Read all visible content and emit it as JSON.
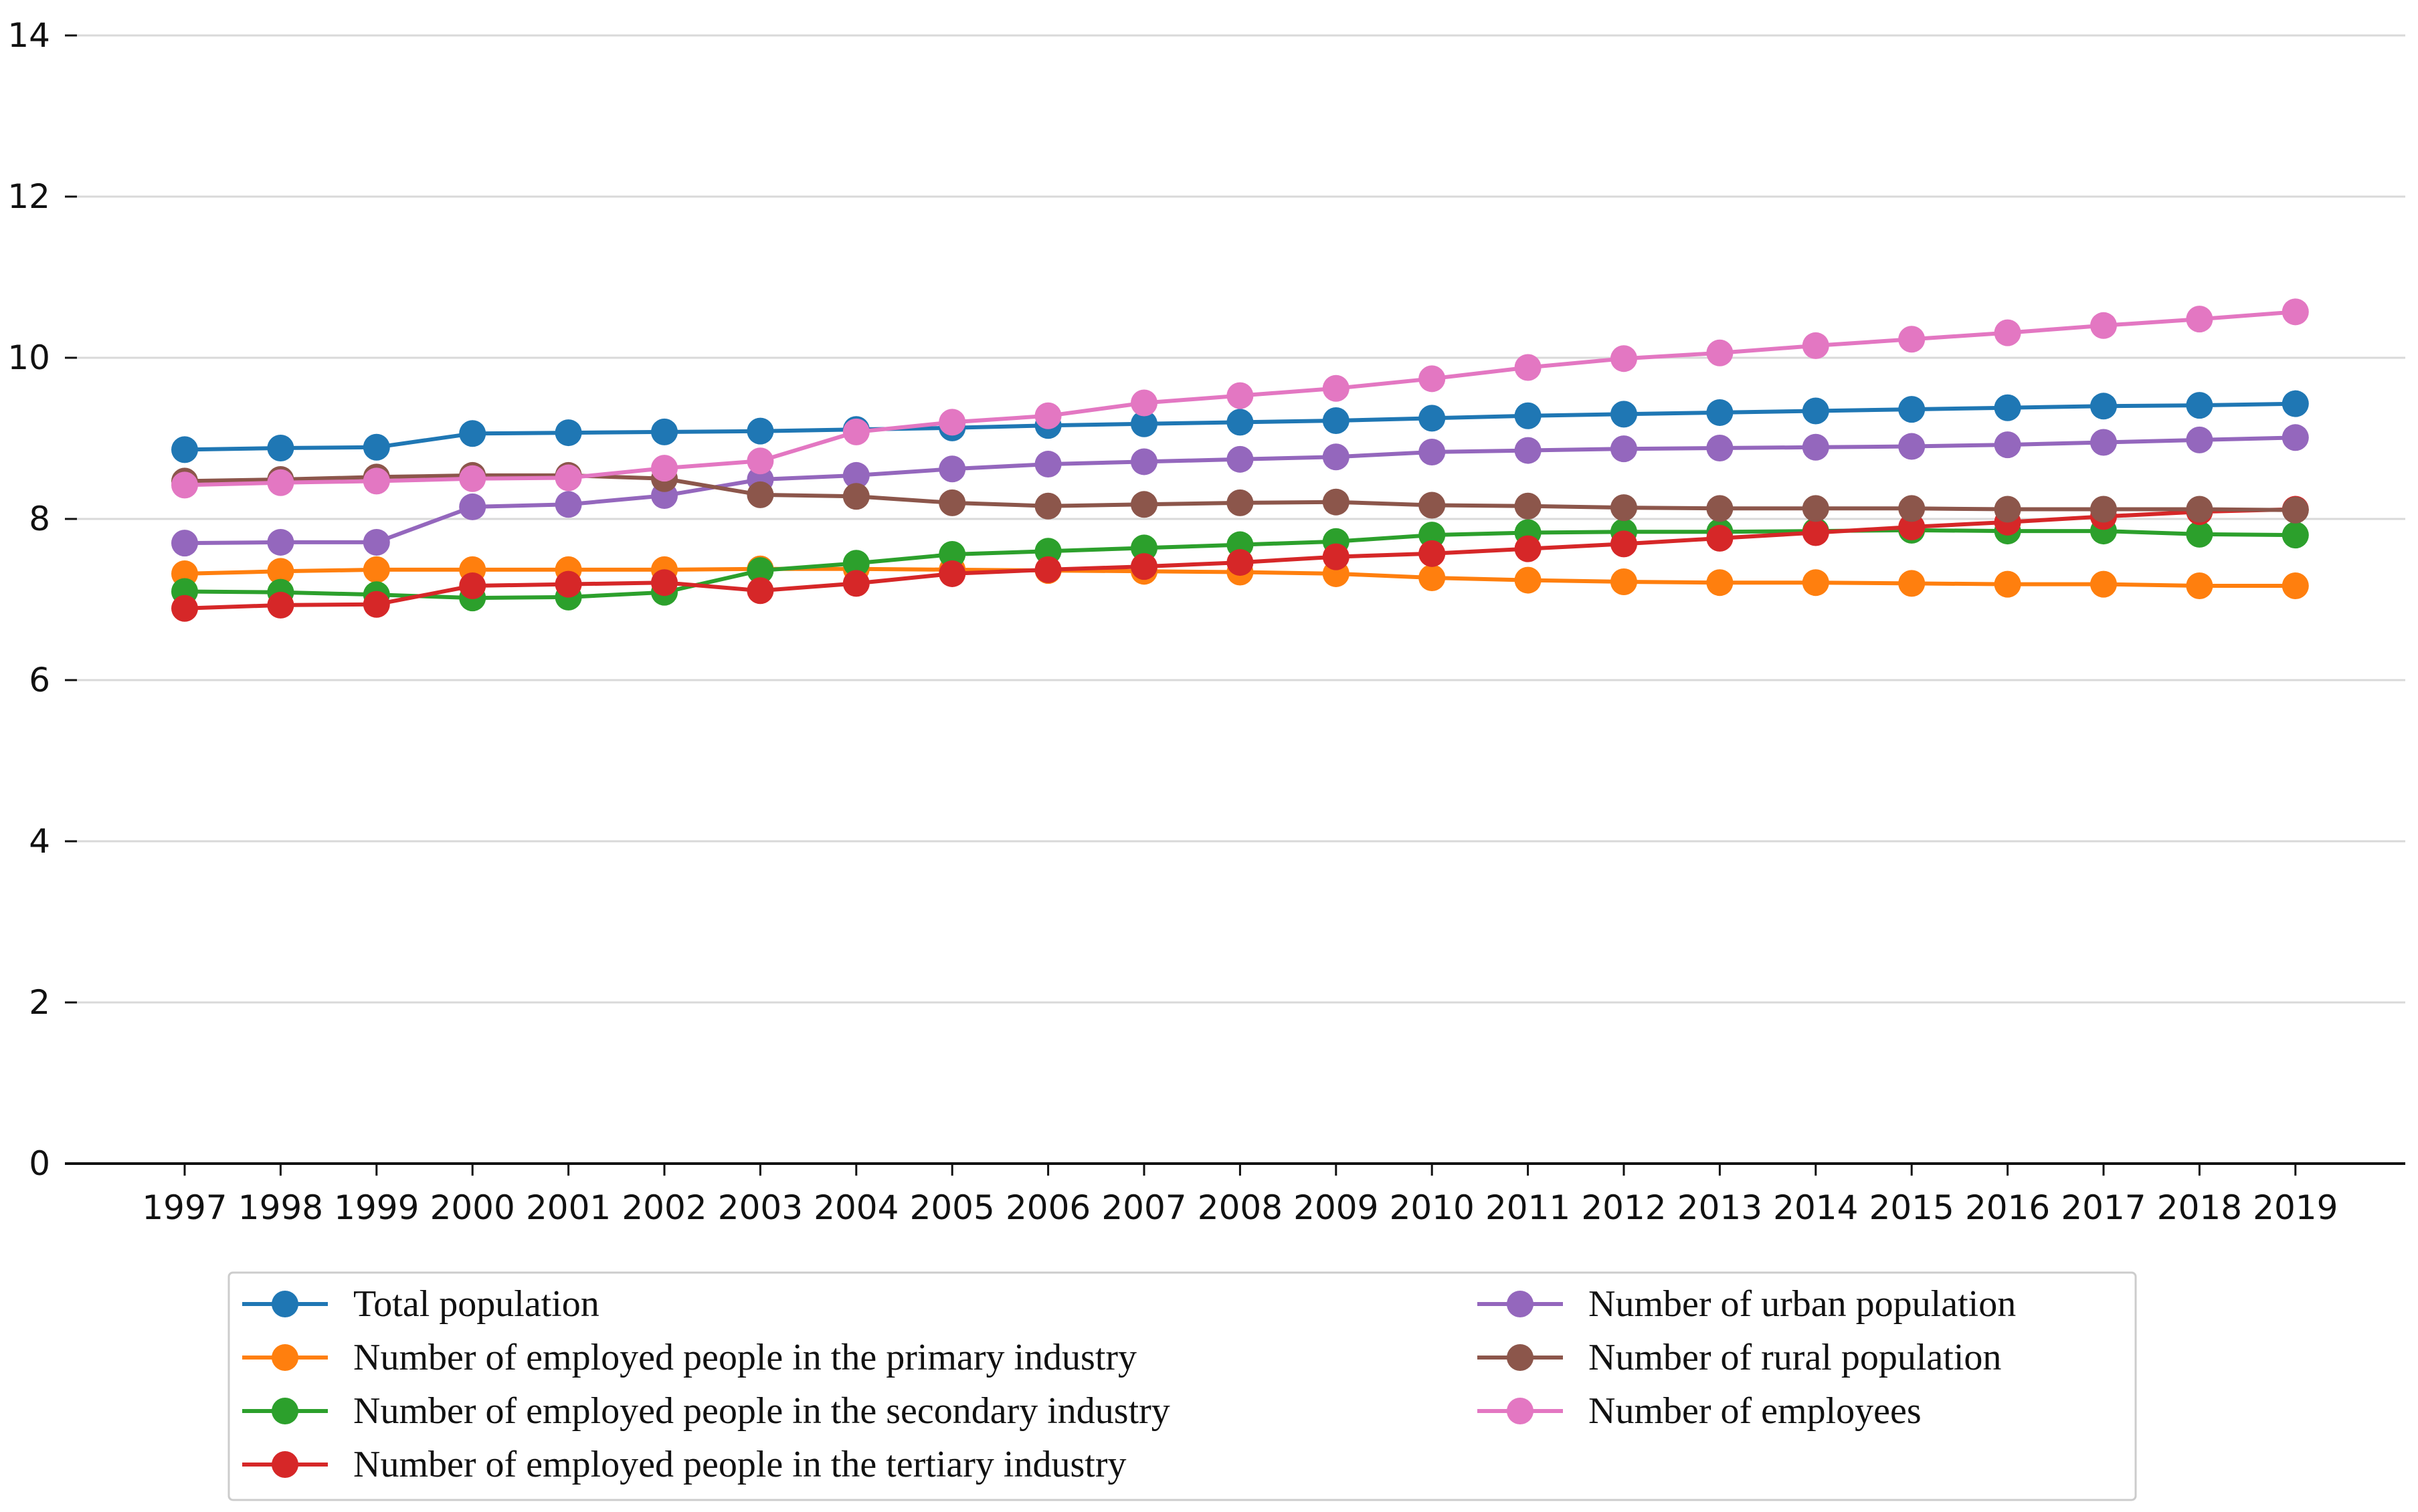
{
  "chart_data": {
    "type": "line",
    "title": "",
    "xlabel": "",
    "ylabel": "",
    "ylim": [
      0,
      14
    ],
    "yticks": [
      0,
      2,
      4,
      6,
      8,
      10,
      12,
      14
    ],
    "grid": "horizontal",
    "legend_position": "bottom",
    "categories": [
      "1997",
      "1998",
      "1999",
      "2000",
      "2001",
      "2002",
      "2003",
      "2004",
      "2005",
      "2006",
      "2007",
      "2008",
      "2009",
      "2010",
      "2011",
      "2012",
      "2013",
      "2014",
      "2015",
      "2016",
      "2017",
      "2018",
      "2019"
    ],
    "series": [
      {
        "name": "Total population",
        "color": "#1f77b4",
        "values": [
          8.86,
          8.88,
          8.89,
          9.06,
          9.07,
          9.08,
          9.09,
          9.11,
          9.13,
          9.16,
          9.18,
          9.2,
          9.22,
          9.25,
          9.28,
          9.3,
          9.32,
          9.34,
          9.36,
          9.38,
          9.4,
          9.41,
          9.43
        ]
      },
      {
        "name": "Number of employed people in the primary industry",
        "color": "#ff7f0e",
        "values": [
          7.32,
          7.35,
          7.37,
          7.37,
          7.37,
          7.37,
          7.38,
          7.38,
          7.37,
          7.36,
          7.35,
          7.34,
          7.32,
          7.27,
          7.24,
          7.22,
          7.21,
          7.21,
          7.2,
          7.19,
          7.19,
          7.17,
          7.17
        ]
      },
      {
        "name": "Number of employed people in the secondary industry",
        "color": "#2ca02c",
        "values": [
          7.1,
          7.09,
          7.06,
          7.02,
          7.03,
          7.09,
          7.36,
          7.45,
          7.56,
          7.6,
          7.64,
          7.68,
          7.72,
          7.8,
          7.83,
          7.84,
          7.84,
          7.85,
          7.86,
          7.85,
          7.85,
          7.81,
          7.8
        ]
      },
      {
        "name": "Number of employed people in the tertiary industry",
        "color": "#d62728",
        "values": [
          6.89,
          6.93,
          6.94,
          7.17,
          7.19,
          7.21,
          7.11,
          7.2,
          7.32,
          7.37,
          7.41,
          7.46,
          7.53,
          7.57,
          7.63,
          7.69,
          7.76,
          7.83,
          7.9,
          7.96,
          8.03,
          8.09,
          8.12
        ]
      },
      {
        "name": "Number of urban population",
        "color": "#9467bd",
        "values": [
          7.7,
          7.71,
          7.71,
          8.15,
          8.18,
          8.29,
          8.49,
          8.54,
          8.62,
          8.68,
          8.71,
          8.74,
          8.77,
          8.83,
          8.85,
          8.87,
          8.88,
          8.89,
          8.9,
          8.92,
          8.95,
          8.98,
          9.01
        ]
      },
      {
        "name": "Number of rural population",
        "color": "#8c564b",
        "values": [
          8.47,
          8.49,
          8.52,
          8.54,
          8.54,
          8.5,
          8.3,
          8.28,
          8.2,
          8.16,
          8.18,
          8.2,
          8.21,
          8.17,
          8.16,
          8.14,
          8.13,
          8.13,
          8.13,
          8.12,
          8.12,
          8.12,
          8.11
        ]
      },
      {
        "name": "Number of employees",
        "color": "#e377c2",
        "values": [
          8.42,
          8.45,
          8.47,
          8.5,
          8.51,
          8.63,
          8.72,
          9.08,
          9.2,
          9.28,
          9.44,
          9.53,
          9.62,
          9.74,
          9.88,
          9.99,
          10.06,
          10.15,
          10.23,
          10.31,
          10.4,
          10.48,
          10.57
        ]
      }
    ]
  }
}
